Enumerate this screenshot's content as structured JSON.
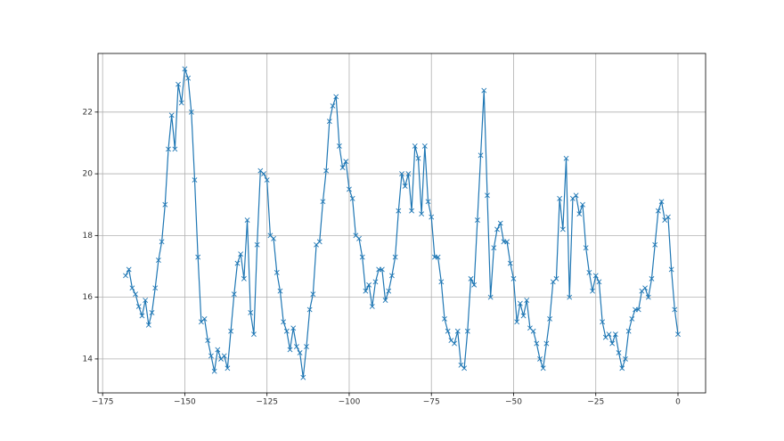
{
  "chart_data": {
    "type": "line",
    "x": [
      -168,
      -167,
      -166,
      -165,
      -164,
      -163,
      -162,
      -161,
      -160,
      -159,
      -158,
      -157,
      -156,
      -155,
      -154,
      -153,
      -152,
      -151,
      -150,
      -149,
      -148,
      -147,
      -146,
      -145,
      -144,
      -143,
      -142,
      -141,
      -140,
      -139,
      -138,
      -137,
      -136,
      -135,
      -134,
      -133,
      -132,
      -131,
      -130,
      -129,
      -128,
      -127,
      -126,
      -125,
      -124,
      -123,
      -122,
      -121,
      -120,
      -119,
      -118,
      -117,
      -116,
      -115,
      -114,
      -113,
      -112,
      -111,
      -110,
      -109,
      -108,
      -107,
      -106,
      -105,
      -104,
      -103,
      -102,
      -101,
      -100,
      -99,
      -98,
      -97,
      -96,
      -95,
      -94,
      -93,
      -92,
      -91,
      -90,
      -89,
      -88,
      -87,
      -86,
      -85,
      -84,
      -83,
      -82,
      -81,
      -80,
      -79,
      -78,
      -77,
      -76,
      -75,
      -74,
      -73,
      -72,
      -71,
      -70,
      -69,
      -68,
      -67,
      -66,
      -65,
      -64,
      -63,
      -62,
      -61,
      -60,
      -59,
      -58,
      -57,
      -56,
      -55,
      -54,
      -53,
      -52,
      -51,
      -50,
      -49,
      -48,
      -47,
      -46,
      -45,
      -44,
      -43,
      -42,
      -41,
      -40,
      -39,
      -38,
      -37,
      -36,
      -35,
      -34,
      -33,
      -32,
      -31,
      -30,
      -29,
      -28,
      -27,
      -26,
      -25,
      -24,
      -23,
      -22,
      -21,
      -20,
      -19,
      -18,
      -17,
      -16,
      -15,
      -14,
      -13,
      -12,
      -11,
      -10,
      -9,
      -8,
      -7,
      -6,
      -5,
      -4,
      -3,
      -2,
      -1,
      0
    ],
    "series": [
      {
        "color": "#1f77b4",
        "marker": "x",
        "values": [
          16.7,
          16.9,
          16.3,
          16.1,
          15.7,
          15.4,
          15.9,
          15.1,
          15.5,
          16.3,
          17.2,
          17.8,
          19.0,
          20.8,
          21.9,
          20.8,
          22.9,
          22.3,
          23.4,
          23.1,
          22.0,
          19.8,
          17.3,
          15.2,
          15.3,
          14.6,
          14.1,
          13.6,
          14.3,
          14.0,
          14.1,
          13.7,
          14.9,
          16.1,
          17.1,
          17.4,
          16.6,
          18.5,
          15.5,
          14.8,
          17.7,
          20.1,
          20.0,
          19.8,
          18.0,
          17.9,
          16.8,
          16.2,
          15.2,
          14.9,
          14.3,
          15.0,
          14.4,
          14.2,
          13.4,
          14.4,
          15.6,
          16.1,
          17.7,
          17.8,
          19.1,
          20.1,
          21.7,
          22.2,
          22.5,
          20.9,
          20.2,
          20.4,
          19.5,
          19.2,
          18.0,
          17.9,
          17.3,
          16.2,
          16.4,
          15.7,
          16.5,
          16.9,
          16.9,
          15.9,
          16.2,
          16.7,
          17.3,
          18.8,
          20.0,
          19.6,
          20.0,
          18.8,
          20.9,
          20.5,
          18.7,
          20.9,
          19.1,
          18.6,
          17.3,
          17.3,
          16.5,
          15.3,
          14.9,
          14.6,
          14.5,
          14.9,
          13.8,
          13.7,
          14.9,
          16.6,
          16.4,
          18.5,
          20.6,
          22.7,
          19.3,
          16.0,
          17.6,
          18.2,
          18.4,
          17.8,
          17.8,
          17.1,
          16.6,
          15.2,
          15.8,
          15.4,
          15.9,
          15.0,
          14.9,
          14.5,
          14.0,
          13.7,
          14.5,
          15.3,
          16.5,
          16.6,
          19.2,
          18.2,
          20.5,
          16.0,
          19.2,
          19.3,
          18.7,
          19.0,
          17.6,
          16.8,
          16.2,
          16.7,
          16.5,
          15.2,
          14.7,
          14.8,
          14.5,
          14.8,
          14.2,
          13.7,
          14.0,
          14.9,
          15.3,
          15.6,
          15.6,
          16.2,
          16.3,
          16.0,
          16.6,
          17.7,
          18.8,
          19.1,
          18.5,
          18.6,
          16.9,
          15.6,
          14.8
        ]
      }
    ],
    "xlim": [
      -176.4,
      8.4
    ],
    "xticks": [
      {
        "value": -175,
        "label": "−175"
      },
      {
        "value": -150,
        "label": "−150"
      },
      {
        "value": -125,
        "label": "−125"
      },
      {
        "value": -100,
        "label": "−100"
      },
      {
        "value": -75,
        "label": "−75"
      },
      {
        "value": -50,
        "label": "−50"
      },
      {
        "value": -25,
        "label": "−25"
      },
      0
    ],
    "ylim": [
      12.9,
      23.9
    ],
    "yticks": [
      14,
      16,
      18,
      20,
      22
    ],
    "grid": true
  }
}
